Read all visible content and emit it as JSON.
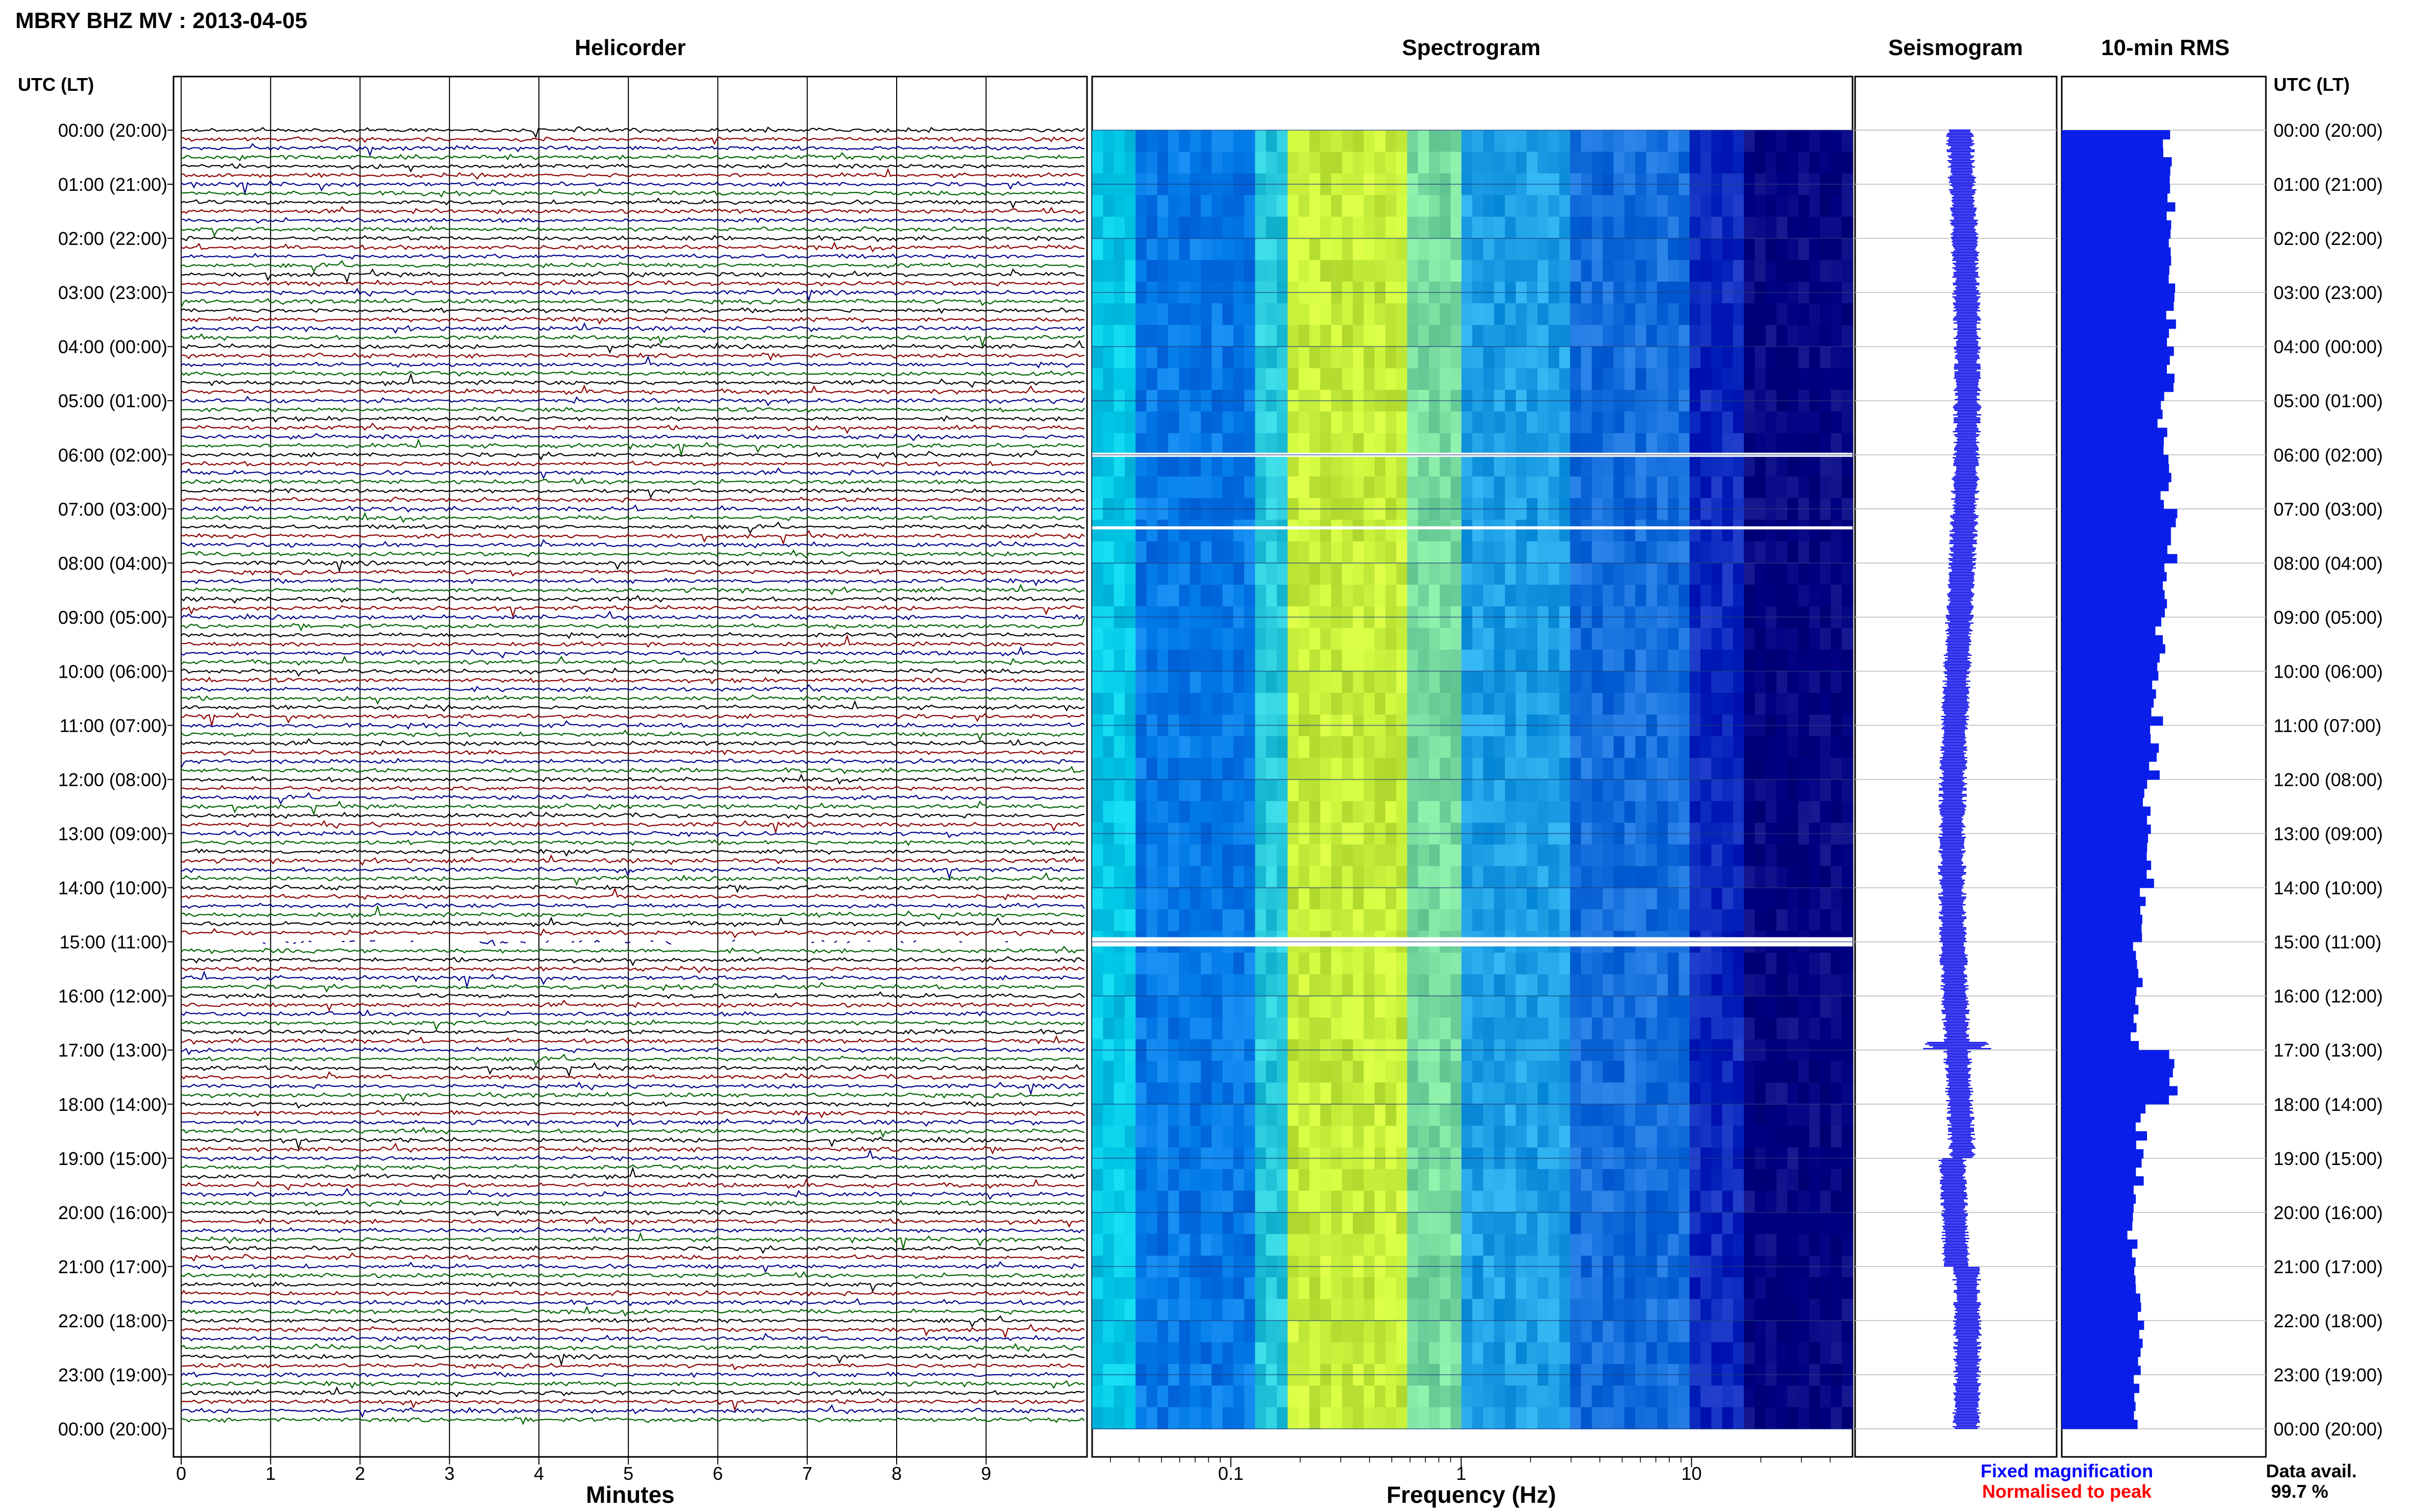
{
  "header": {
    "station_title": "MBRY BHZ MV : 2013-04-05",
    "utc_lt_label_left": "UTC (LT)",
    "utc_lt_label_right": "UTC (LT)"
  },
  "panels": {
    "helicorder": "Helicorder",
    "spectrogram": "Spectrogram",
    "seismogram": "Seismogram",
    "rms": "10-min RMS"
  },
  "axes": {
    "minutes_label": "Minutes",
    "minutes_ticks": [
      "0",
      "1",
      "2",
      "3",
      "4",
      "5",
      "6",
      "7",
      "8",
      "9"
    ],
    "frequency_label": "Frequency (Hz)",
    "frequency_ticks": [
      "0.1",
      "1",
      "10"
    ]
  },
  "legend": {
    "fixed": "Fixed magnification",
    "normalised": "Normalised to peak",
    "fixed_color": "#0000ff",
    "normalised_color": "#ff0000"
  },
  "data_availability": {
    "label": "Data avail.",
    "value": "99.7 %"
  },
  "time_labels": [
    "00:00 (20:00)",
    "01:00 (21:00)",
    "02:00 (22:00)",
    "03:00 (23:00)",
    "04:00 (00:00)",
    "05:00 (01:00)",
    "06:00 (02:00)",
    "07:00 (03:00)",
    "08:00 (04:00)",
    "09:00 (05:00)",
    "10:00 (06:00)",
    "11:00 (07:00)",
    "12:00 (08:00)",
    "13:00 (09:00)",
    "14:00 (10:00)",
    "15:00 (11:00)",
    "16:00 (12:00)",
    "17:00 (13:00)",
    "18:00 (14:00)",
    "19:00 (15:00)",
    "20:00 (16:00)",
    "21:00 (17:00)",
    "22:00 (18:00)",
    "23:00 (19:00)",
    "00:00 (20:00)"
  ],
  "trace_colors": [
    "#000000",
    "#8b0000",
    "#00008b",
    "#006400"
  ],
  "chart_data": {
    "type": "bar",
    "title": "10-min RMS",
    "xlabel": "",
    "ylabel": "UTC (LT)",
    "categories_hours_utc": [
      0,
      1,
      2,
      3,
      4,
      5,
      6,
      7,
      8,
      9,
      10,
      11,
      12,
      13,
      14,
      15,
      16,
      17,
      18,
      19,
      20,
      21,
      22,
      23
    ],
    "values_relative": [
      0.82,
      0.84,
      0.87,
      0.85,
      0.84,
      0.8,
      0.82,
      0.86,
      0.8,
      0.78,
      0.75,
      0.72,
      0.68,
      0.7,
      0.64,
      0.6,
      0.58,
      0.86,
      0.62,
      0.6,
      0.56,
      0.58,
      0.62,
      0.6
    ],
    "spectrogram_gaps_utc": [
      "06:00",
      "07:20",
      "15:00"
    ]
  }
}
